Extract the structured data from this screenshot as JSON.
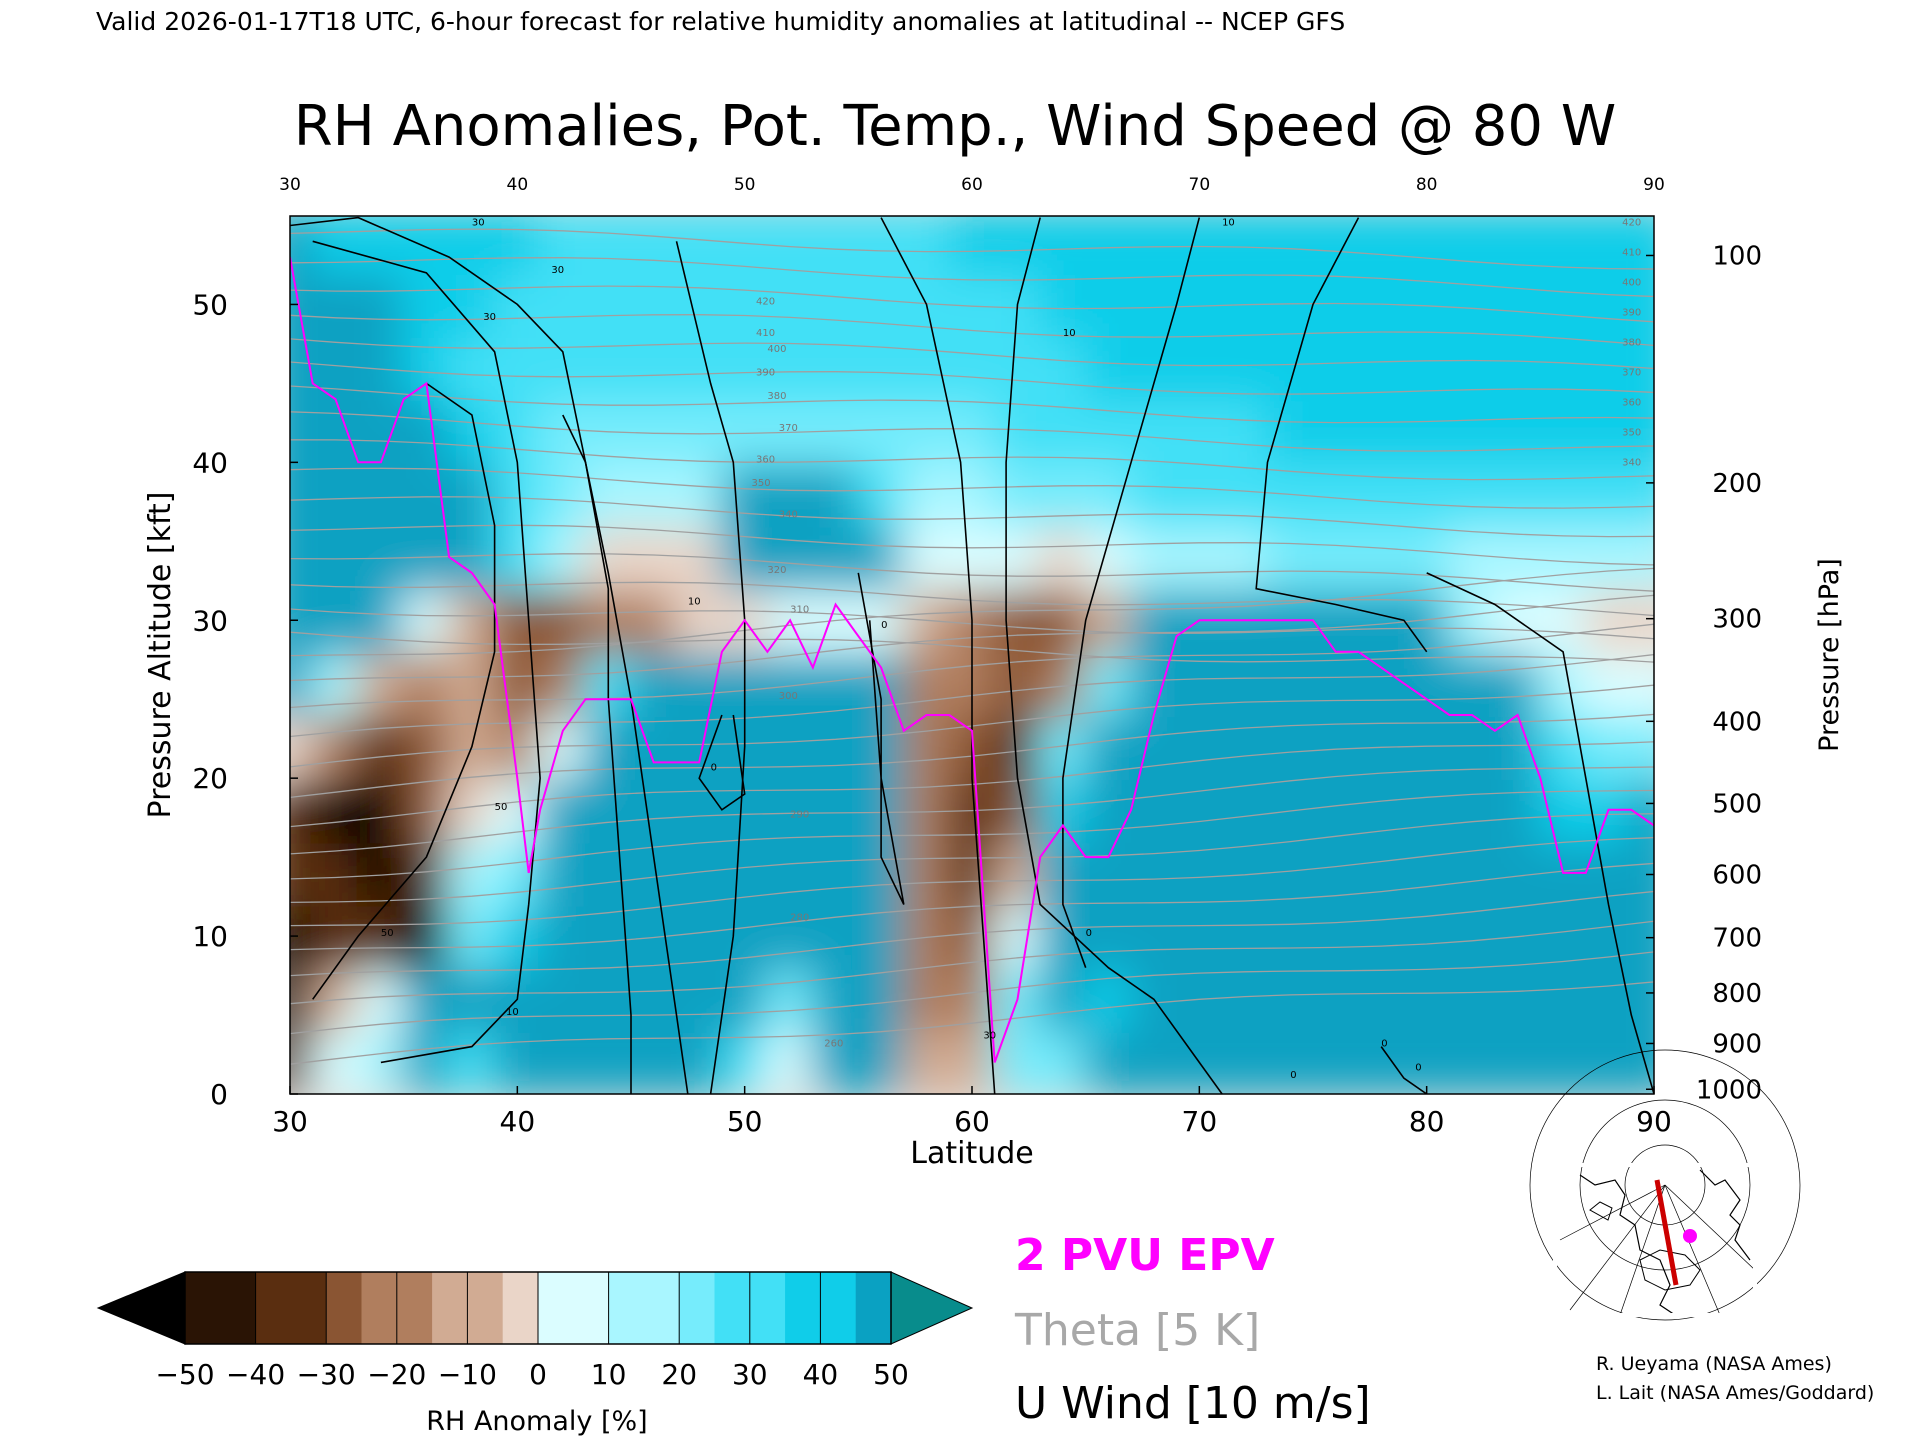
{
  "header": "Valid 2026-01-17T18 UTC, 6-hour forecast for relative humidity anomalies at latitudinal -- NCEP GFS",
  "chart_data": {
    "type": "heatmap",
    "title": "RH Anomalies, Pot. Temp., Wind Speed @ 80 W",
    "xlabel": "Latitude",
    "ylabel": "Pressure Altitude [kft]",
    "y2label": "Pressure [hPa]",
    "xlim": [
      30,
      90
    ],
    "ylim": [
      0,
      55.6
    ],
    "x_ticks": [
      "30",
      "40",
      "50",
      "60",
      "70",
      "80",
      "90"
    ],
    "y_ticks": [
      "0",
      "10",
      "20",
      "30",
      "40",
      "50"
    ],
    "y2_ticks": [
      "100",
      "200",
      "300",
      "400",
      "500",
      "600",
      "700",
      "800",
      "900",
      "1000"
    ],
    "y2_tick_kft": [
      53.1,
      38.7,
      30.1,
      23.6,
      18.4,
      13.9,
      9.9,
      6.4,
      3.2,
      0.3
    ],
    "grid": false,
    "contour_labels": {
      "theta": [
        "420",
        "410",
        "400",
        "390",
        "380",
        "370",
        "360",
        "350",
        "340",
        "320",
        "310",
        "300",
        "290",
        "280",
        "260"
      ],
      "theta_right": [
        "420",
        "410",
        "400",
        "390",
        "380",
        "370",
        "360",
        "350",
        "340"
      ],
      "u_wind": [
        "30",
        "30",
        "30",
        "50",
        "50",
        "10",
        "0",
        "10",
        "30",
        "0",
        "10",
        "0",
        "10",
        "0",
        "0",
        "0"
      ]
    },
    "series": [
      {
        "name": "2 PVU EPV",
        "x": [
          30,
          31,
          32,
          33,
          34,
          35,
          36,
          37,
          38,
          39,
          40,
          40.5,
          41,
          42,
          43,
          44,
          45,
          46,
          47,
          48,
          49,
          50,
          51,
          52,
          53,
          54,
          55,
          56,
          57,
          58,
          59,
          60,
          61,
          62,
          63,
          64,
          65,
          66,
          67,
          68,
          69,
          70,
          71,
          72,
          73,
          74,
          75,
          76,
          77,
          78,
          79,
          80,
          81,
          82,
          83,
          84,
          85,
          86,
          87,
          88,
          89,
          90
        ],
        "y": [
          53,
          45,
          44,
          40,
          40,
          44,
          45,
          34,
          33,
          31,
          20,
          14,
          18,
          23,
          25,
          25,
          25,
          21,
          21,
          21,
          28,
          30,
          28,
          30,
          27,
          31,
          29,
          27,
          23,
          24,
          24,
          23,
          2,
          6,
          15,
          17,
          15,
          15,
          18,
          24,
          29,
          30,
          30,
          30,
          30,
          30,
          30,
          28,
          28,
          27,
          26,
          25,
          24,
          24,
          23,
          24,
          20,
          14,
          14,
          18,
          18,
          17
        ]
      }
    ],
    "rh_anomaly_grid": {
      "x": [
        30,
        32,
        34,
        36,
        38,
        40,
        42,
        44,
        46,
        48,
        50,
        52,
        54,
        56,
        58,
        60,
        62,
        64,
        66,
        68,
        70,
        72,
        74,
        76,
        78,
        80,
        82,
        84,
        86,
        88,
        90
      ],
      "y": [
        2,
        6,
        10,
        14,
        18,
        22,
        26,
        30,
        34,
        38,
        42,
        46,
        50,
        54
      ],
      "values": [
        [
          -45,
          -20,
          -15,
          10,
          -5,
          25,
          20,
          22,
          25,
          20,
          -5,
          -20,
          15,
          20,
          -30,
          -30,
          -10,
          -10,
          20,
          25,
          20,
          20,
          15,
          20,
          20,
          20,
          15,
          15,
          5,
          15,
          15
        ],
        [
          -50,
          -30,
          -20,
          20,
          5,
          20,
          30,
          35,
          30,
          25,
          5,
          -10,
          25,
          20,
          -35,
          -35,
          -10,
          15,
          0,
          20,
          25,
          25,
          25,
          25,
          25,
          25,
          25,
          25,
          5,
          15,
          15
        ],
        [
          -50,
          -45,
          -45,
          -50,
          -10,
          0,
          30,
          30,
          30,
          30,
          25,
          30,
          25,
          25,
          -35,
          -40,
          -20,
          20,
          25,
          25,
          25,
          25,
          25,
          25,
          25,
          25,
          25,
          25,
          15,
          20,
          20
        ],
        [
          -45,
          -45,
          -50,
          -45,
          -15,
          -10,
          25,
          30,
          30,
          30,
          30,
          30,
          20,
          20,
          -35,
          -45,
          -30,
          10,
          25,
          25,
          25,
          25,
          30,
          30,
          30,
          30,
          30,
          30,
          15,
          15,
          15
        ],
        [
          -45,
          -50,
          -50,
          -40,
          -25,
          -20,
          20,
          30,
          30,
          30,
          30,
          30,
          25,
          20,
          -35,
          -45,
          -40,
          0,
          25,
          25,
          30,
          30,
          30,
          30,
          30,
          30,
          30,
          30,
          0,
          0,
          5
        ],
        [
          -25,
          -35,
          -45,
          -40,
          -30,
          -35,
          -20,
          30,
          30,
          30,
          30,
          30,
          25,
          25,
          -35,
          -40,
          -45,
          -10,
          25,
          25,
          30,
          30,
          30,
          30,
          30,
          30,
          30,
          25,
          -5,
          -10,
          -10
        ],
        [
          5,
          -15,
          -30,
          -35,
          -30,
          -40,
          -35,
          -5,
          25,
          25,
          30,
          30,
          30,
          30,
          -35,
          -35,
          -40,
          -35,
          -10,
          25,
          30,
          30,
          30,
          30,
          30,
          30,
          30,
          25,
          -15,
          -20,
          -20
        ],
        [
          25,
          20,
          10,
          -20,
          -30,
          -40,
          -40,
          -35,
          -35,
          -25,
          -25,
          -20,
          -20,
          -20,
          -30,
          -35,
          -40,
          -40,
          -30,
          20,
          40,
          40,
          40,
          40,
          40,
          40,
          -15,
          -20,
          -20,
          -25,
          -25
        ],
        [
          30,
          25,
          20,
          20,
          10,
          -5,
          -15,
          -25,
          -25,
          -25,
          5,
          20,
          20,
          5,
          -20,
          -20,
          -20,
          -25,
          -20,
          -15,
          -15,
          -15,
          -10,
          -10,
          -10,
          -10,
          -15,
          -15,
          -15,
          -15,
          -15
        ],
        [
          30,
          25,
          15,
          10,
          5,
          -5,
          -10,
          -15,
          -15,
          -15,
          10,
          15,
          10,
          -5,
          -15,
          -15,
          -10,
          -10,
          -10,
          -5,
          -5,
          -5,
          -5,
          -5,
          -5,
          -5,
          -5,
          -5,
          -5,
          -5,
          -5
        ],
        [
          20,
          15,
          10,
          5,
          0,
          -5,
          -10,
          -10,
          -10,
          -10,
          -10,
          -10,
          -10,
          -10,
          -10,
          -10,
          -5,
          -5,
          -5,
          -5,
          -5,
          -5,
          0,
          0,
          0,
          0,
          0,
          0,
          0,
          0,
          0
        ],
        [
          15,
          10,
          5,
          0,
          -5,
          -5,
          -5,
          -5,
          -5,
          -5,
          -5,
          -5,
          -5,
          -5,
          -5,
          -5,
          -5,
          -5,
          0,
          0,
          0,
          0,
          0,
          0,
          0,
          0,
          0,
          0,
          0,
          0,
          0
        ],
        [
          10,
          5,
          5,
          0,
          0,
          -5,
          -5,
          -5,
          -5,
          -5,
          -5,
          -5,
          -5,
          -5,
          -5,
          -5,
          -5,
          0,
          0,
          0,
          0,
          0,
          0,
          0,
          0,
          0,
          0,
          0,
          0,
          0,
          0
        ],
        [
          5,
          0,
          0,
          0,
          0,
          0,
          -5,
          -5,
          -5,
          -5,
          -5,
          -5,
          -5,
          -5,
          -5,
          0,
          0,
          0,
          0,
          0,
          0,
          0,
          0,
          0,
          0,
          0,
          0,
          0,
          0,
          0,
          0
        ]
      ]
    }
  },
  "colorbar": {
    "label": "RH Anomaly [%]",
    "ticks": [
      "−50",
      "−40",
      "−30",
      "−20",
      "−10",
      "0",
      "10",
      "20",
      "30",
      "40",
      "50"
    ],
    "colors": [
      "#000000",
      "#2a1405",
      "#5a2e10",
      "#8a5533",
      "#b07e5e",
      "#d1ab93",
      "#ead5c8",
      "#dbfdff",
      "#a9f6ff",
      "#76ecfc",
      "#42e0f6",
      "#10cde9",
      "#0aa1c2",
      "#088c8c"
    ]
  },
  "legend": {
    "epv": "2 PVU EPV",
    "theta": "Theta [5 K]",
    "uwind": "U Wind [10 m/s]",
    "colors": {
      "epv": "#ff00ff",
      "theta": "#a8a8a8",
      "uwind": "#000000"
    }
  },
  "credits": [
    "R. Ueyama (NASA Ames)",
    "L. Lait (NASA Ames/Goddard)"
  ],
  "inset_map": {
    "marker_color": "#ff00ff",
    "line_color": "#cc0000"
  }
}
